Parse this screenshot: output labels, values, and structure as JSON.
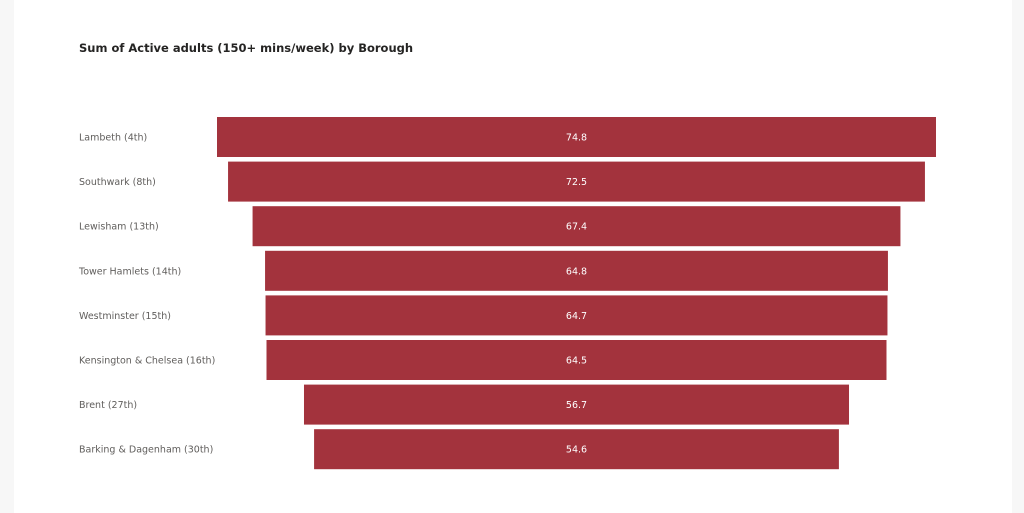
{
  "chart_data": {
    "type": "bar",
    "subtype": "funnel",
    "title": "Sum of Active adults (150+ mins/week) by Borough",
    "categories": [
      "Lambeth (4th)",
      "Southwark (8th)",
      "Lewisham (13th)",
      "Tower Hamlets (14th)",
      "Westminster (15th)",
      "Kensington & Chelsea (16th)",
      "Brent (27th)",
      "Barking & Dagenham (30th)"
    ],
    "values": [
      74.8,
      72.5,
      67.4,
      64.8,
      64.7,
      64.5,
      56.7,
      54.6
    ],
    "value_labels": [
      "74.8",
      "72.5",
      "67.4",
      "64.8",
      "64.7",
      "64.5",
      "56.7",
      "54.6"
    ],
    "bar_color": "#a3333d",
    "legend": "none",
    "grid": false
  }
}
